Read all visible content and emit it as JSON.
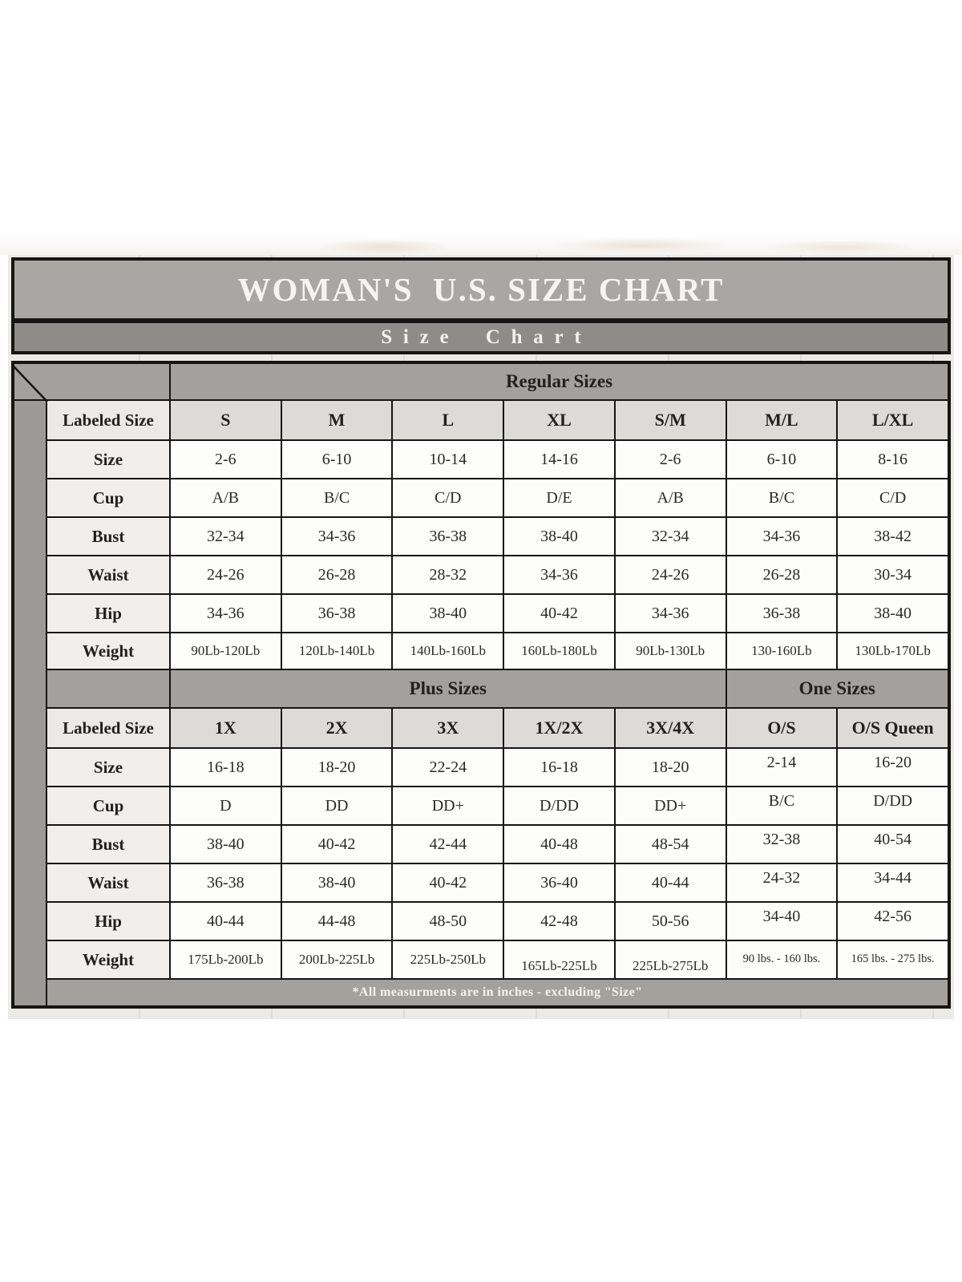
{
  "chart_data": {
    "type": "table",
    "title": "WOMAN'S  U.S. SIZE CHART",
    "subtitle": "Size Chart",
    "footnote": "*All measurments are in inches - excluding \"Size\"",
    "sections": [
      {
        "group_headers": [
          {
            "label": "Regular Sizes",
            "span": 7
          }
        ],
        "labeled_size_header": "Labeled Size",
        "columns": [
          "S",
          "M",
          "L",
          "XL",
          "S/M",
          "M/L",
          "L/XL"
        ],
        "rows": [
          {
            "label": "Size",
            "values": [
              "2-6",
              "6-10",
              "10-14",
              "14-16",
              "2-6",
              "6-10",
              "8-16"
            ]
          },
          {
            "label": "Cup",
            "values": [
              "A/B",
              "B/C",
              "C/D",
              "D/E",
              "A/B",
              "B/C",
              "C/D"
            ]
          },
          {
            "label": "Bust",
            "values": [
              "32-34",
              "34-36",
              "36-38",
              "38-40",
              "32-34",
              "34-36",
              "38-42"
            ]
          },
          {
            "label": "Waist",
            "values": [
              "24-26",
              "26-28",
              "28-32",
              "34-36",
              "24-26",
              "26-28",
              "30-34"
            ]
          },
          {
            "label": "Hip",
            "values": [
              "34-36",
              "36-38",
              "38-40",
              "40-42",
              "34-36",
              "36-38",
              "38-40"
            ]
          },
          {
            "label": "Weight",
            "values": [
              "90Lb-120Lb",
              "120Lb-140Lb",
              "140Lb-160Lb",
              "160Lb-180Lb",
              "90Lb-130Lb",
              "130-160Lb",
              "130Lb-170Lb"
            ]
          }
        ]
      },
      {
        "group_headers": [
          {
            "label": "Plus Sizes",
            "span": 5
          },
          {
            "label": "One Sizes",
            "span": 2
          }
        ],
        "labeled_size_header": "Labeled Size",
        "columns": [
          "1X",
          "2X",
          "3X",
          "1X/2X",
          "3X/4X",
          "O/S",
          "O/S Queen"
        ],
        "rows": [
          {
            "label": "Size",
            "values": [
              "16-18",
              "18-20",
              "22-24",
              "16-18",
              "18-20",
              "2-14",
              "16-20"
            ]
          },
          {
            "label": "Cup",
            "values": [
              "D",
              "DD",
              "DD+",
              "D/DD",
              "DD+",
              "B/C",
              "D/DD"
            ]
          },
          {
            "label": "Bust",
            "values": [
              "38-40",
              "40-42",
              "42-44",
              "40-48",
              "48-54",
              "32-38",
              "40-54"
            ]
          },
          {
            "label": "Waist",
            "values": [
              "36-38",
              "38-40",
              "40-42",
              "36-40",
              "40-44",
              "24-32",
              "34-44"
            ]
          },
          {
            "label": "Hip",
            "values": [
              "40-44",
              "44-48",
              "48-50",
              "42-48",
              "50-56",
              "34-40",
              "42-56"
            ]
          },
          {
            "label": "Weight",
            "values": [
              "175Lb-200Lb",
              "200Lb-225Lb",
              "225Lb-250Lb",
              "165Lb-225Lb",
              "225Lb-275Lb",
              "90 lbs. - 160 lbs.",
              "165 lbs. - 275 lbs."
            ]
          }
        ]
      }
    ]
  },
  "colors": {
    "title_bar_bg": "#a9a7a4",
    "subtitle_bar_bg": "#8e8c89",
    "section_header_bg": "#a3a19e",
    "column_header_bg": "#dcdbd8",
    "row_label_bg": "#f0efec",
    "data_cell_bg": "#fdfdfc",
    "gutter_bg": "#9c9a97",
    "grid_border": "#151515",
    "frame_bg": "#eceae6",
    "title_text": "#f5f4f2",
    "cell_text": "#22211f"
  }
}
